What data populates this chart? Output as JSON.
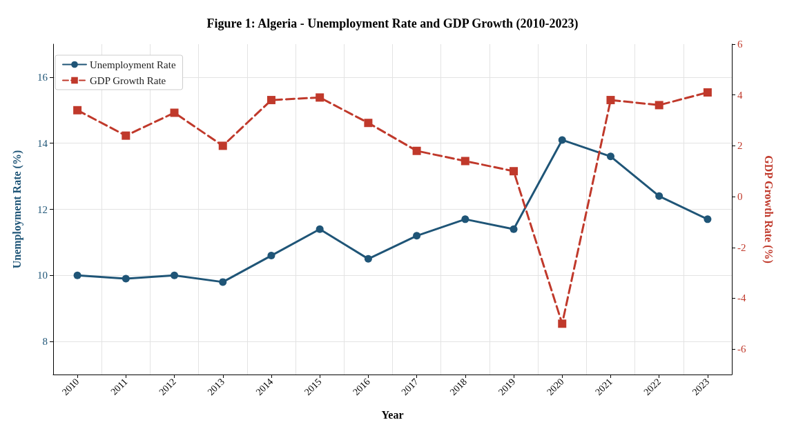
{
  "chart_data": {
    "type": "line",
    "title": "Figure 1: Algeria - Unemployment Rate and GDP Growth (2010-2023)",
    "xlabel": "Year",
    "ylabel": "Unemployment Rate (%)",
    "y2label": "GDP Growth Rate (%)",
    "categories": [
      "2010",
      "2011",
      "2012",
      "2013",
      "2014",
      "2015",
      "2016",
      "2017",
      "2018",
      "2019",
      "2020",
      "2021",
      "2022",
      "2023"
    ],
    "series": [
      {
        "name": "Unemployment Rate",
        "color": "#1f5577",
        "marker": "circle",
        "line_style": "solid",
        "values": [
          10.0,
          9.9,
          10.0,
          9.8,
          10.6,
          11.4,
          10.5,
          11.2,
          11.7,
          11.4,
          14.1,
          13.6,
          12.4,
          11.7
        ]
      },
      {
        "name": "GDP Growth Rate",
        "color": "#c0392b",
        "marker": "square",
        "line_style": "dashed",
        "axis": "y2",
        "values": [
          3.4,
          2.4,
          3.3,
          2.0,
          3.8,
          3.9,
          2.9,
          1.8,
          1.4,
          1.0,
          -5.0,
          3.8,
          3.6,
          4.1
        ]
      }
    ],
    "ylim": [
      7,
      17
    ],
    "yticks": [
      8,
      10,
      12,
      14,
      16
    ],
    "y2lim": [
      -7,
      6
    ],
    "y2ticks": [
      -6,
      -4,
      -2,
      0,
      2,
      4,
      6
    ],
    "grid": true,
    "legend": "top left"
  }
}
